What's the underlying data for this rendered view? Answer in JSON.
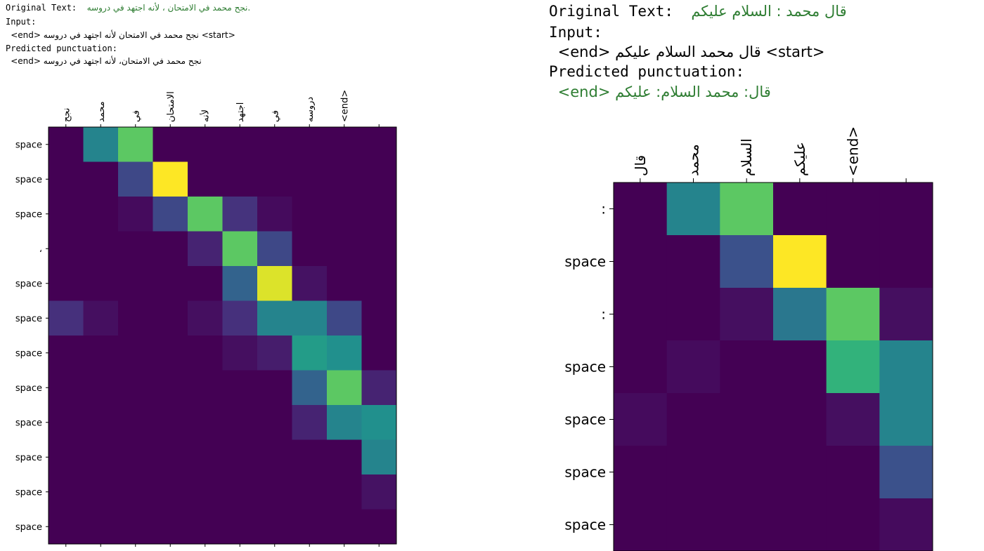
{
  "panels": [
    {
      "original_label": "Original Text:",
      "original_text": "نجح محمد في الامتحان ، لأنه اجتهد في دروسه.",
      "input_label": "Input:",
      "input_text": "<start> نجح محمد في الامتحان لأنه اجتهد في دروسه <end>",
      "predicted_label": "Predicted punctuation:",
      "predicted_text": "نجح محمد في الامتحان، لأنه اجتهد في دروسه <end>"
    },
    {
      "original_label": "Original Text:",
      "original_text": "قال محمد : السلام عليكم",
      "input_label": "Input:",
      "input_text": "<start> قال محمد السلام عليكم <end>",
      "predicted_label": "Predicted punctuation:",
      "predicted_text": "قال: محمد السلام: عليكم <end>"
    }
  ],
  "chart_data": [
    {
      "type": "heatmap",
      "colormap": "viridis",
      "x_tick_labels": [
        "نجح",
        "محمد",
        "في",
        "الامتحان",
        "لأنه",
        "اجتهد",
        "في",
        "دروسه",
        "<end>",
        ""
      ],
      "y_tick_labels": [
        "space",
        "space",
        "space",
        "،",
        "space",
        "space",
        "space",
        "space",
        "space",
        "space",
        "space",
        "space"
      ],
      "values": [
        [
          0.0,
          0.45,
          0.75,
          0.0,
          0.0,
          0.0,
          0.0,
          0.0,
          0.0,
          0.0
        ],
        [
          0.0,
          0.0,
          0.22,
          1.0,
          0.0,
          0.0,
          0.0,
          0.0,
          0.0,
          0.0
        ],
        [
          0.0,
          0.0,
          0.03,
          0.22,
          0.75,
          0.15,
          0.03,
          0.0,
          0.0,
          0.0
        ],
        [
          0.0,
          0.0,
          0.0,
          0.0,
          0.1,
          0.75,
          0.22,
          0.0,
          0.0,
          0.0
        ],
        [
          0.0,
          0.0,
          0.0,
          0.0,
          0.0,
          0.32,
          0.95,
          0.05,
          0.0,
          0.0
        ],
        [
          0.14,
          0.04,
          0.0,
          0.0,
          0.04,
          0.14,
          0.45,
          0.45,
          0.22,
          0.0
        ],
        [
          0.0,
          0.0,
          0.0,
          0.0,
          0.0,
          0.04,
          0.08,
          0.55,
          0.5,
          0.0
        ],
        [
          0.0,
          0.0,
          0.0,
          0.0,
          0.0,
          0.0,
          0.0,
          0.32,
          0.75,
          0.1
        ],
        [
          0.0,
          0.0,
          0.0,
          0.0,
          0.0,
          0.0,
          0.0,
          0.1,
          0.45,
          0.5
        ],
        [
          0.0,
          0.0,
          0.0,
          0.0,
          0.0,
          0.0,
          0.0,
          0.0,
          0.0,
          0.45
        ],
        [
          0.0,
          0.0,
          0.0,
          0.0,
          0.0,
          0.0,
          0.0,
          0.0,
          0.0,
          0.05
        ],
        [
          0.0,
          0.0,
          0.0,
          0.0,
          0.0,
          0.0,
          0.0,
          0.0,
          0.0,
          0.0
        ]
      ]
    },
    {
      "type": "heatmap",
      "colormap": "viridis",
      "x_tick_labels": [
        "قال",
        "محمد",
        "السلام",
        "عليكم",
        "<end>",
        ""
      ],
      "y_tick_labels": [
        ":",
        "space",
        ":",
        "space",
        "space",
        "space",
        "space"
      ],
      "values": [
        [
          0.0,
          0.45,
          0.75,
          0.0,
          0.0,
          0.0
        ],
        [
          0.0,
          0.0,
          0.25,
          1.0,
          0.0,
          0.0
        ],
        [
          0.0,
          0.0,
          0.04,
          0.4,
          0.75,
          0.04
        ],
        [
          0.0,
          0.03,
          0.0,
          0.0,
          0.65,
          0.45
        ],
        [
          0.03,
          0.0,
          0.0,
          0.0,
          0.04,
          0.45
        ],
        [
          0.0,
          0.0,
          0.0,
          0.0,
          0.0,
          0.25
        ],
        [
          0.0,
          0.0,
          0.0,
          0.0,
          0.0,
          0.03
        ]
      ]
    }
  ]
}
